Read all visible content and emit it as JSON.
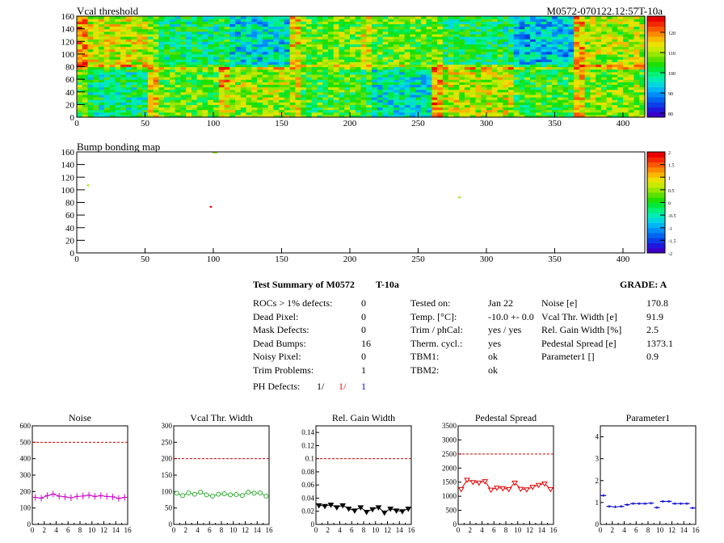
{
  "header": {
    "title": "Vcal threshold",
    "module_id": "M0572-070122.12:57T-10a"
  },
  "bump_title": "Bump bonding map",
  "colors": {
    "palette": [
      "#3c00c8",
      "#1f17dc",
      "#0c3ee8",
      "#0064f0",
      "#008cf6",
      "#00b4f4",
      "#00d8de",
      "#00ecb4",
      "#00f078",
      "#00e83a",
      "#1ee000",
      "#5ae000",
      "#96e600",
      "#c8ea00",
      "#ece000",
      "#f8b800",
      "#fa8a00",
      "#f85800",
      "#f42800",
      "#e80000"
    ],
    "marker_red": "#dd0000",
    "marker_green": "#33cc33",
    "marker_blue": "#0000dd",
    "magenta": "#cc00cc",
    "black": "#000000"
  },
  "chart_data": [
    {
      "type": "heatmap",
      "name": "vcal-threshold",
      "title": "Vcal threshold",
      "x": {
        "range": [
          0,
          416
        ],
        "ticks": [
          0,
          50,
          100,
          150,
          200,
          250,
          300,
          350,
          400
        ]
      },
      "y": {
        "range": [
          0,
          160
        ],
        "ticks": [
          0,
          20,
          40,
          60,
          80,
          100,
          120,
          140,
          160
        ]
      },
      "z": {
        "range": [
          78,
          128
        ],
        "ticks": [
          80,
          90,
          100,
          110,
          120
        ]
      },
      "rocs_top": [
        112,
        100,
        95,
        107,
        106,
        101,
        93,
        110
      ],
      "rocs_bottom": [
        99,
        106,
        109,
        104,
        96,
        111,
        104,
        108
      ]
    },
    {
      "type": "heatmap",
      "name": "bump-bonding-map",
      "title": "Bump bonding map",
      "x": {
        "range": [
          0,
          416
        ],
        "ticks": [
          0,
          50,
          100,
          150,
          200,
          250,
          300,
          350,
          400
        ]
      },
      "y": {
        "range": [
          0,
          160
        ],
        "ticks": [
          0,
          20,
          40,
          60,
          80,
          100,
          120,
          140,
          160
        ]
      },
      "z": {
        "range": [
          -2,
          2
        ],
        "ticks": [
          -2,
          -1.5,
          -1,
          -0.5,
          0,
          0.5,
          1,
          1.5,
          2
        ]
      },
      "points": [
        {
          "x": 100,
          "y": 159,
          "z": 0.5,
          "w": 3
        },
        {
          "x": 8,
          "y": 107,
          "z": 0.5,
          "w": 1
        },
        {
          "x": 98,
          "y": 73,
          "z": 1.9,
          "w": 1
        },
        {
          "x": 280,
          "y": 88,
          "z": 0.5,
          "w": 1
        }
      ]
    },
    {
      "type": "line",
      "name": "noise",
      "title": "Noise",
      "x": [
        0,
        1,
        2,
        3,
        4,
        5,
        6,
        7,
        8,
        9,
        10,
        11,
        12,
        13,
        14,
        15
      ],
      "values": [
        165,
        160,
        175,
        185,
        172,
        168,
        162,
        170,
        173,
        178,
        170,
        175,
        170,
        168,
        158,
        165
      ],
      "cut": 500,
      "ylim": [
        0,
        600
      ],
      "yticks": [
        0,
        100,
        200,
        300,
        400,
        500,
        600
      ],
      "xlim": [
        0,
        16
      ],
      "xticks": [
        0,
        2,
        4,
        6,
        8,
        10,
        12,
        14,
        16
      ],
      "marker": "cross",
      "color": "magenta"
    },
    {
      "type": "line",
      "name": "vcal-thr-width",
      "title": "Vcal Thr. Width",
      "x": [
        0,
        1,
        2,
        3,
        4,
        5,
        6,
        7,
        8,
        9,
        10,
        11,
        12,
        13,
        14,
        15
      ],
      "values": [
        95,
        88,
        96,
        92,
        98,
        90,
        86,
        92,
        93,
        90,
        91,
        88,
        98,
        95,
        96,
        86
      ],
      "cut": 200,
      "ylim": [
        0,
        300
      ],
      "yticks": [
        0,
        50,
        100,
        150,
        200,
        250,
        300
      ],
      "xlim": [
        0,
        16
      ],
      "xticks": [
        0,
        2,
        4,
        6,
        8,
        10,
        12,
        14,
        16
      ],
      "marker": "circle",
      "color": "green"
    },
    {
      "type": "line",
      "name": "rel-gain-width",
      "title": "Rel. Gain Width",
      "x": [
        0,
        1,
        2,
        3,
        4,
        5,
        6,
        7,
        8,
        9,
        10,
        11,
        12,
        13,
        14,
        15
      ],
      "values": [
        0.029,
        0.028,
        0.03,
        0.026,
        0.029,
        0.024,
        0.021,
        0.026,
        0.019,
        0.023,
        0.026,
        0.018,
        0.024,
        0.021,
        0.02,
        0.024
      ],
      "cut": 0.1,
      "ylim": [
        0,
        0.15
      ],
      "yticks": [
        0,
        0.02,
        0.04,
        0.06,
        0.08,
        0.1,
        0.12,
        0.14
      ],
      "xlim": [
        0,
        16
      ],
      "xticks": [
        0,
        2,
        4,
        6,
        8,
        10,
        12,
        14,
        16
      ],
      "marker": "tri",
      "color": "black"
    },
    {
      "type": "line",
      "name": "pedestal-spread",
      "title": "Pedestal Spread",
      "x": [
        0,
        1,
        2,
        3,
        4,
        5,
        6,
        7,
        8,
        9,
        10,
        11,
        12,
        13,
        14,
        15
      ],
      "values": [
        1250,
        1580,
        1500,
        1480,
        1530,
        1230,
        1300,
        1280,
        1250,
        1480,
        1260,
        1240,
        1330,
        1400,
        1450,
        1250
      ],
      "cut": 2500,
      "ylim": [
        0,
        3500
      ],
      "yticks": [
        0,
        500,
        1000,
        1500,
        2000,
        2500,
        3000,
        3500
      ],
      "xlim": [
        0,
        16
      ],
      "xticks": [
        0,
        2,
        4,
        6,
        8,
        10,
        12,
        14,
        16
      ],
      "marker": "tri",
      "color": "red"
    },
    {
      "type": "line",
      "name": "parameter1",
      "title": "Parameter1",
      "x": [
        0,
        1,
        2,
        3,
        4,
        5,
        6,
        7,
        8,
        9,
        10,
        11,
        12,
        13,
        14,
        15
      ],
      "values": [
        1.32,
        0.82,
        0.8,
        0.82,
        0.9,
        0.95,
        0.95,
        0.95,
        0.97,
        0.77,
        1.05,
        1.05,
        0.95,
        0.95,
        0.95,
        0.75
      ],
      "ylim": [
        0,
        4.5
      ],
      "yticks": [
        0,
        1,
        2,
        3,
        4
      ],
      "xlim": [
        0,
        16
      ],
      "xticks": [
        0,
        2,
        4,
        6,
        8,
        10,
        12,
        14,
        16
      ],
      "marker": "hbar",
      "color": "blue"
    }
  ],
  "summary": {
    "title": "Test Summary of M0572",
    "temp_tag": "T-10a",
    "grade": "GRADE:  A",
    "left": [
      {
        "label": "ROCs > 1% defects:",
        "value": "0"
      },
      {
        "label": "Dead Pixel:",
        "value": "0"
      },
      {
        "label": "Mask Defects:",
        "value": "0"
      },
      {
        "label": "Dead Bumps:",
        "value": "16"
      },
      {
        "label": "Noisy Pixel:",
        "value": "0"
      },
      {
        "label": "Trim Problems:",
        "value": "1"
      }
    ],
    "ph_label": "PH Defects:",
    "ph_values": [
      "1/",
      "1/",
      "1"
    ],
    "middle": [
      {
        "label": "Tested on:",
        "value": "Jan 22"
      },
      {
        "label": "Temp. [°C]:",
        "value": "-10.0 +- 0.0"
      },
      {
        "label": "Trim / phCal:",
        "value": "yes / yes"
      },
      {
        "label": "Therm. cycl.:",
        "value": "yes"
      },
      {
        "label": "TBM1:",
        "value": "ok"
      },
      {
        "label": "TBM2:",
        "value": "ok"
      }
    ],
    "right": [
      {
        "label": "Noise [e]",
        "value": "170.8"
      },
      {
        "label": "Vcal Thr. Width [e]",
        "value": "91.9"
      },
      {
        "label": "Rel. Gain Width [%]",
        "value": "2.5"
      },
      {
        "label": "Pedestal Spread [e]",
        "value": "1373.1"
      },
      {
        "label": "Parameter1 []",
        "value": "0.9"
      }
    ]
  }
}
